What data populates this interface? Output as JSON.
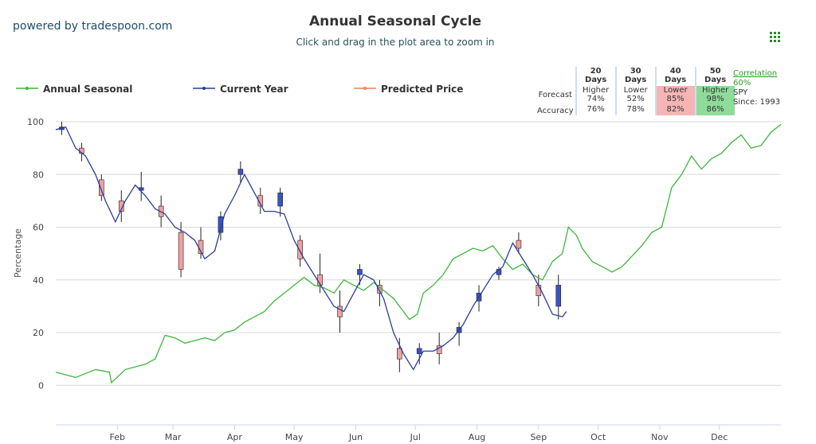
{
  "brand": "powered by tradespoon.com",
  "chart_data": {
    "type": "seasonal",
    "title": "Annual Seasonal Cycle",
    "subtitle": "Click and drag in the plot area to zoom in",
    "y_label": "Percentage",
    "xlim": [
      0,
      365
    ],
    "xticks": [
      {
        "value": 31,
        "label": "Feb"
      },
      {
        "value": 59,
        "label": "Mar"
      },
      {
        "value": 90,
        "label": "Apr"
      },
      {
        "value": 120,
        "label": "May"
      },
      {
        "value": 151,
        "label": "Jun"
      },
      {
        "value": 181,
        "label": "Jul"
      },
      {
        "value": 212,
        "label": "Aug"
      },
      {
        "value": 243,
        "label": "Sep"
      },
      {
        "value": 273,
        "label": "Oct"
      },
      {
        "value": 304,
        "label": "Nov"
      },
      {
        "value": 334,
        "label": "Dec"
      }
    ],
    "ylim": [
      -15,
      100
    ],
    "yticks": [
      0,
      20,
      40,
      60,
      80,
      100
    ],
    "grid": true,
    "series": [
      {
        "name": "Annual Seasonal",
        "color": "#3db53d",
        "x": [
          0,
          10,
          20,
          27,
          28,
          35,
          45,
          50,
          55,
          60,
          65,
          70,
          75,
          80,
          85,
          90,
          95,
          100,
          105,
          110,
          115,
          120,
          125,
          130,
          135,
          140,
          145,
          150,
          155,
          160,
          165,
          170,
          175,
          178,
          182,
          185,
          190,
          195,
          200,
          205,
          210,
          215,
          220,
          225,
          230,
          235,
          240,
          245,
          250,
          255,
          258,
          262,
          265,
          270,
          275,
          280,
          285,
          290,
          295,
          300,
          305,
          310,
          315,
          320,
          325,
          330,
          335,
          340,
          345,
          350,
          355,
          360,
          365
        ],
        "values": [
          5,
          3,
          6,
          5,
          1,
          6,
          8,
          10,
          19,
          18,
          16,
          17,
          18,
          17,
          20,
          21,
          24,
          26,
          28,
          32,
          35,
          38,
          41,
          38,
          37,
          35,
          40,
          38,
          36,
          39,
          36,
          33,
          28,
          25,
          27,
          35,
          38,
          42,
          48,
          50,
          52,
          51,
          53,
          48,
          44,
          46,
          42,
          40,
          47,
          50,
          60,
          57,
          52,
          47,
          45,
          43,
          45,
          49,
          53,
          58,
          60,
          75,
          80,
          87,
          82,
          86,
          88,
          92,
          95,
          90,
          91,
          96,
          99
        ]
      },
      {
        "name": "Current Year",
        "color": "#2b3d9c",
        "x": [
          0,
          5,
          10,
          15,
          20,
          25,
          30,
          35,
          40,
          45,
          50,
          55,
          60,
          65,
          70,
          75,
          80,
          85,
          90,
          95,
          100,
          105,
          110,
          115,
          120,
          125,
          130,
          135,
          140,
          145,
          150,
          155,
          160,
          165,
          170,
          175,
          180,
          185,
          190,
          195,
          200,
          205,
          210,
          215,
          220,
          225,
          230,
          235,
          240,
          245,
          250,
          255,
          257
        ],
        "values": [
          97,
          98,
          90,
          87,
          80,
          70,
          62,
          70,
          76,
          72,
          67,
          65,
          60,
          58,
          55,
          48,
          51,
          65,
          72,
          80,
          73,
          66,
          66,
          65,
          55,
          48,
          42,
          36,
          30,
          28,
          35,
          42,
          40,
          33,
          20,
          12,
          6,
          13,
          13,
          15,
          18,
          23,
          30,
          36,
          42,
          45,
          54,
          48,
          42,
          35,
          27,
          26,
          28
        ]
      },
      {
        "name": "Predicted Price",
        "color": "#f0805c",
        "x": [],
        "values": []
      }
    ],
    "candles": {
      "up_color": "#3a52c4",
      "down_color": "#f0a0a0",
      "x": [
        3,
        13,
        23,
        33,
        43,
        53,
        63,
        73,
        83,
        93,
        103,
        113,
        123,
        133,
        143,
        153,
        163,
        173,
        183,
        193,
        203,
        213,
        223,
        233,
        243,
        253
      ],
      "open": [
        97,
        90,
        78,
        70,
        74,
        68,
        58,
        55,
        58,
        80,
        72,
        68,
        55,
        42,
        30,
        42,
        38,
        14,
        12,
        15,
        20,
        32,
        42,
        55,
        38,
        30
      ],
      "high": [
        100,
        92,
        80,
        74,
        81,
        72,
        62,
        60,
        66,
        85,
        75,
        75,
        57,
        50,
        36,
        46,
        40,
        18,
        16,
        20,
        24,
        38,
        45,
        58,
        42,
        42
      ],
      "low": [
        95,
        85,
        70,
        62,
        70,
        60,
        41,
        48,
        55,
        77,
        65,
        64,
        45,
        35,
        20,
        38,
        30,
        5,
        8,
        8,
        15,
        28,
        40,
        50,
        30,
        25
      ],
      "close": [
        98,
        88,
        72,
        66,
        75,
        64,
        44,
        50,
        64,
        82,
        68,
        73,
        48,
        38,
        26,
        44,
        35,
        10,
        14,
        12,
        22,
        35,
        44,
        52,
        34,
        38
      ]
    }
  },
  "table": {
    "headers": [
      "20 Days",
      "30 Days",
      "40 Days",
      "50 Days"
    ],
    "forecast_label": "Forecast",
    "accuracy_label": "Accuracy",
    "forecast": [
      {
        "direction": "Higher",
        "pct": "74%"
      },
      {
        "direction": "Lower",
        "pct": "52%"
      },
      {
        "direction": "Lower",
        "pct": "85%"
      },
      {
        "direction": "Higher",
        "pct": "98%"
      }
    ],
    "accuracy": [
      "76%",
      "78%",
      "82%",
      "86%"
    ]
  },
  "correlation": {
    "link": "Correlation",
    "value": "60%",
    "symbol": "SPY",
    "since": "Since: 1993"
  }
}
